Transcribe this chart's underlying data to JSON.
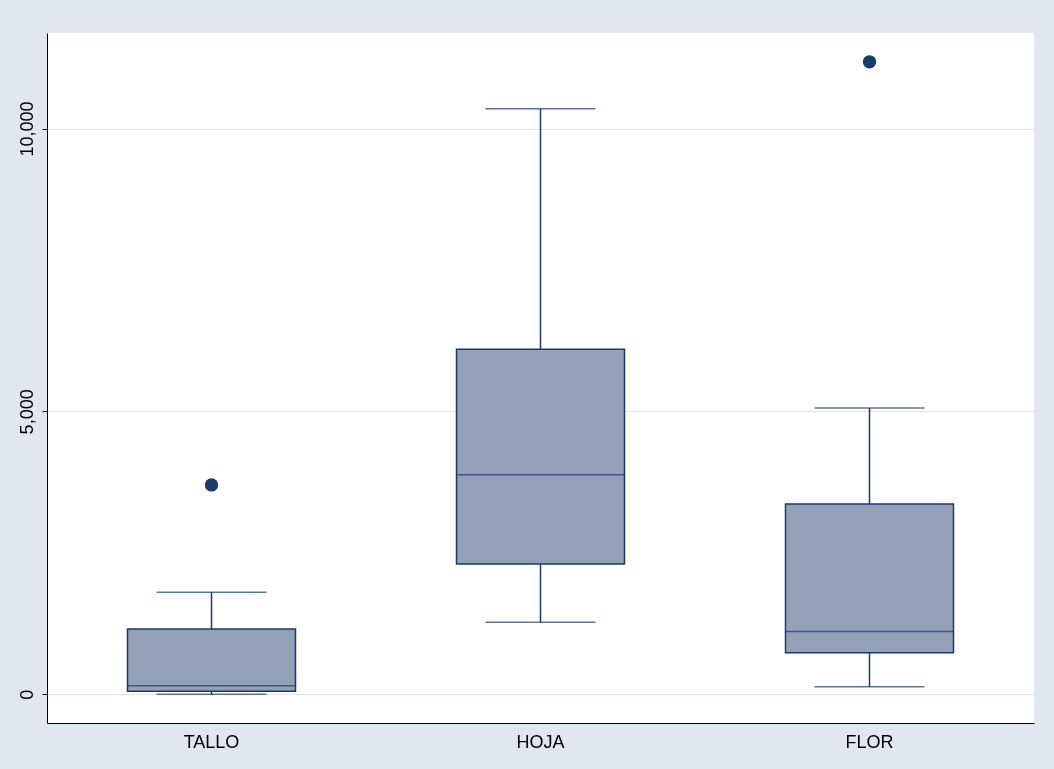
{
  "chart_data": {
    "type": "box",
    "categories": [
      "TALLO",
      "HOJA",
      "FLOR"
    ],
    "series": [
      {
        "color": "#93a0b8",
        "boxes": [
          {
            "low": 0,
            "q1": 50,
            "median": 150,
            "q3": 1150,
            "high": 1800,
            "outliers": [
              3700
            ]
          },
          {
            "low": 1270,
            "q1": 2300,
            "median": 3880,
            "q3": 6100,
            "high": 10350
          },
          {
            "low": 130,
            "q1": 730,
            "median": 1110,
            "q3": 3360,
            "high": 5060,
            "outliers": [
              11180
            ]
          }
        ]
      }
    ],
    "ylim": [
      -510,
      11690
    ],
    "yticks": [
      {
        "value": 0,
        "label": "0"
      },
      {
        "value": 5000,
        "label": "5,000"
      },
      {
        "value": 10000,
        "label": "10,000"
      }
    ],
    "grid": "y",
    "marker": "circle"
  }
}
